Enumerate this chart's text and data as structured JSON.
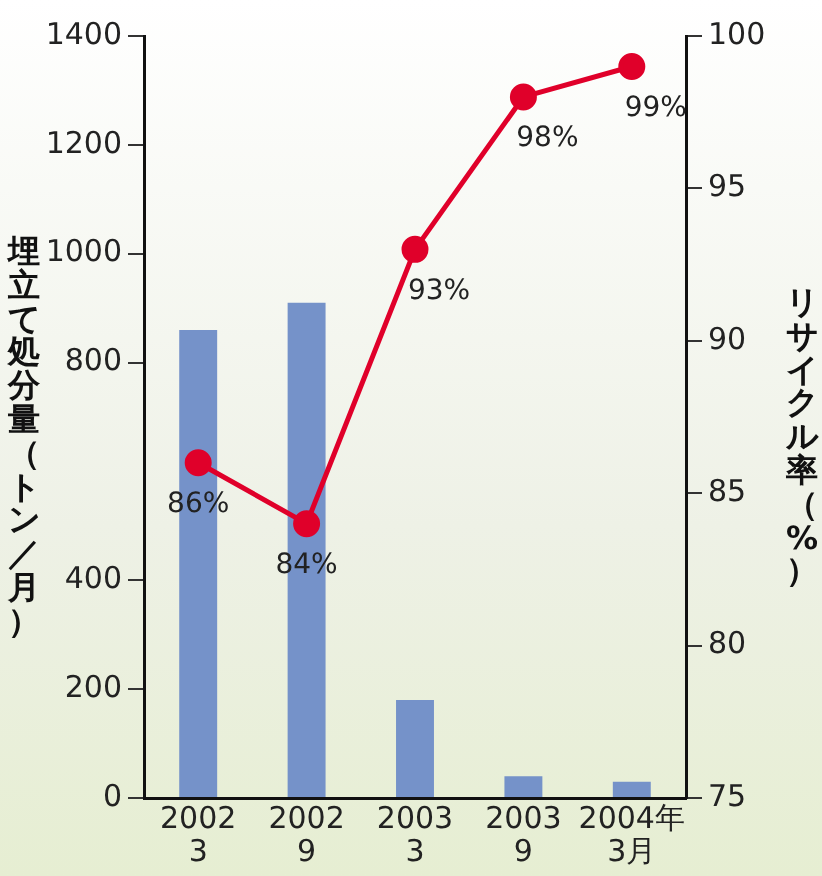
{
  "chart_data": {
    "type": "bar",
    "ylabel": "埋立て処分量（トン／月）",
    "y2label": "リサイクル率（%）",
    "categories": [
      "2002\n3",
      "2002\n9",
      "2003\n3",
      "2003\n9",
      "2004年\n3月"
    ],
    "series": [
      {
        "color": "#7592c9",
        "values": [
          860,
          910,
          180,
          40,
          30
        ]
      },
      {
        "type": "line",
        "axis": "y2",
        "color": "#e0002a",
        "marker": "circle",
        "values": [
          86,
          84,
          93,
          98,
          99
        ],
        "value_labels": [
          "86%",
          "84%",
          "93%",
          "98%",
          "99%"
        ]
      }
    ],
    "ylim": [
      0,
      1400
    ],
    "yticks": [
      0,
      200,
      400,
      800,
      1000,
      1200,
      1400
    ],
    "y2lim": [
      75,
      100
    ],
    "y2ticks": [
      75,
      80,
      85,
      90,
      95,
      100
    ],
    "grid": false,
    "legend": false
  }
}
